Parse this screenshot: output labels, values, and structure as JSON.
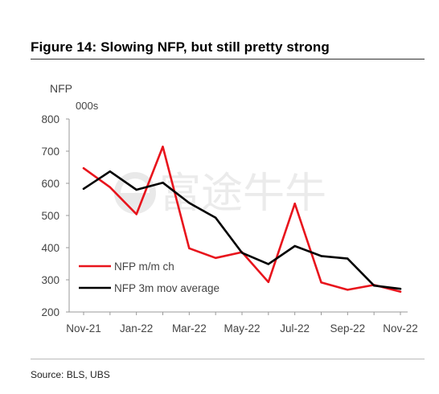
{
  "figure": {
    "title": "Figure 14: Slowing NFP, but still pretty strong",
    "source": "Source: BLS, UBS",
    "watermark": "富途牛牛"
  },
  "chart_data": {
    "type": "line",
    "title": "Figure 14: Slowing NFP, but still pretty strong",
    "ylabel": "NFP",
    "yunit": "000s",
    "ylim": [
      200,
      800
    ],
    "yticks": [
      200,
      300,
      400,
      500,
      600,
      700,
      800
    ],
    "x": [
      "Nov-21",
      "Dec-21",
      "Jan-22",
      "Feb-22",
      "Mar-22",
      "Apr-22",
      "May-22",
      "Jun-22",
      "Jul-22",
      "Aug-22",
      "Sep-22",
      "Oct-22",
      "Nov-22"
    ],
    "xtick_labels": [
      "Nov-21",
      "Jan-22",
      "Mar-22",
      "May-22",
      "Jul-22",
      "Sep-22",
      "Nov-22"
    ],
    "grid": false,
    "legend": "bottom-left",
    "series": [
      {
        "name": "NFP m/m ch",
        "color": "#e8141c",
        "values": [
          647,
          588,
          504,
          714,
          398,
          368,
          386,
          293,
          537,
          292,
          269,
          284,
          263
        ]
      },
      {
        "name": "NFP 3m mov average",
        "color": "#000000",
        "values": [
          583,
          637,
          580,
          602,
          539,
          493,
          384,
          349,
          405,
          374,
          366,
          282,
          272
        ]
      }
    ]
  }
}
